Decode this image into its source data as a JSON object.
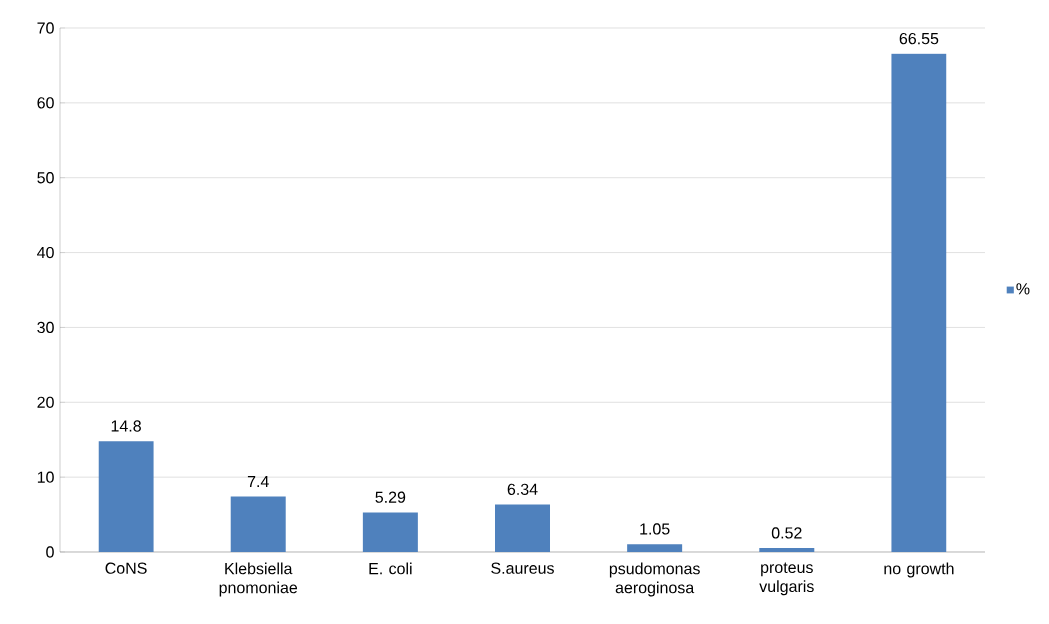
{
  "chart_data": {
    "type": "bar",
    "categories": [
      "CoNS",
      "Klebsiella pnomoniae",
      "E. coli",
      "S.aureus",
      "psudomonas aeroginosa",
      "proteus vulgaris",
      "no growth"
    ],
    "series": [
      {
        "name": "%",
        "color": "#4f81bd",
        "values": [
          14.8,
          7.4,
          5.29,
          6.34,
          1.05,
          0.52,
          66.55
        ]
      }
    ],
    "ylim": [
      0,
      70
    ],
    "yticks": [
      0,
      10,
      20,
      30,
      40,
      50,
      60,
      70
    ],
    "grid": "y",
    "legend": "right",
    "data_labels": true
  }
}
